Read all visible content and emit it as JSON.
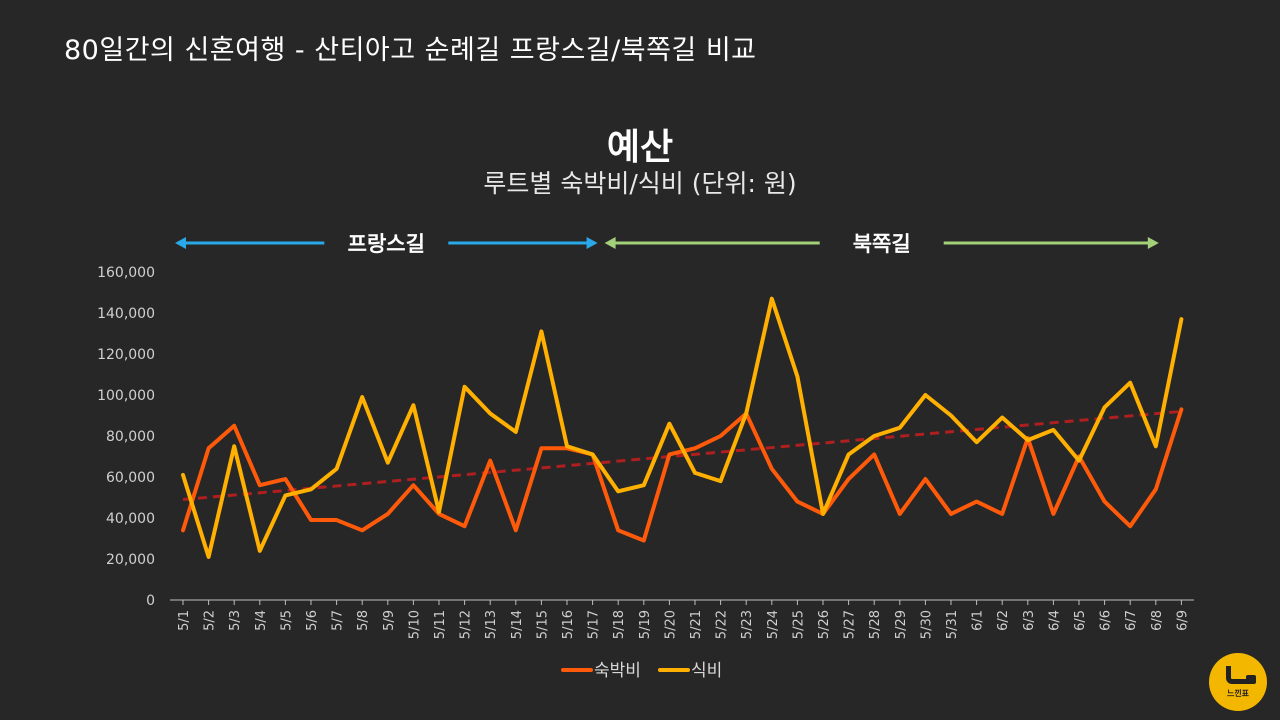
{
  "header": {
    "title": "80일간의 신혼여행 - 산티아고 순례길 프랑스길/북쪽길 비교"
  },
  "logo": {
    "text": "느낀표"
  },
  "chart_data": {
    "type": "line",
    "title": "예산",
    "subtitle": "루트별 숙박비/식비 (단위: 원)",
    "xlabel": "",
    "ylabel": "",
    "categories": [
      "5/1",
      "5/2",
      "5/3",
      "5/4",
      "5/5",
      "5/6",
      "5/7",
      "5/8",
      "5/9",
      "5/10",
      "5/11",
      "5/12",
      "5/13",
      "5/14",
      "5/15",
      "5/16",
      "5/17",
      "5/18",
      "5/19",
      "5/20",
      "5/21",
      "5/22",
      "5/23",
      "5/24",
      "5/25",
      "5/26",
      "5/27",
      "5/28",
      "5/29",
      "5/30",
      "5/31",
      "6/1",
      "6/2",
      "6/3",
      "6/4",
      "6/5",
      "6/6",
      "6/7",
      "6/8",
      "6/9"
    ],
    "ylim": [
      0,
      160000
    ],
    "yticks": [
      "0",
      "20,000",
      "40,000",
      "60,000",
      "80,000",
      "100,000",
      "120,000",
      "140,000",
      "160,000"
    ],
    "grid": false,
    "legend": "bottom",
    "series": [
      {
        "name": "숙박비",
        "color": "#ff5a0a",
        "values": [
          34000,
          74000,
          85000,
          56000,
          59000,
          39000,
          39000,
          34000,
          42000,
          56000,
          42000,
          36000,
          68000,
          34000,
          74000,
          74000,
          71000,
          34000,
          29000,
          71000,
          74000,
          80000,
          91000,
          64000,
          48000,
          42000,
          59000,
          71000,
          42000,
          59000,
          42000,
          48000,
          42000,
          79000,
          42000,
          70000,
          48000,
          36000,
          54000,
          93000
        ]
      },
      {
        "name": "식비",
        "color": "#ffb000",
        "values": [
          61000,
          21000,
          75000,
          24000,
          51000,
          54000,
          64000,
          99000,
          67000,
          95000,
          43000,
          104000,
          91000,
          82000,
          131000,
          75000,
          71000,
          53000,
          56000,
          86000,
          62000,
          58000,
          91000,
          147000,
          109000,
          42000,
          71000,
          80000,
          84000,
          100000,
          90000,
          77000,
          89000,
          78000,
          83000,
          68000,
          94000,
          106000,
          75000,
          137000
        ]
      }
    ],
    "trendline": {
      "color": "#b01f1f",
      "from": 49000,
      "to": 92000
    },
    "annotations": [
      {
        "label": "프랑스길",
        "from": "5/1",
        "to": "5/17",
        "color": "#29a9e8"
      },
      {
        "label": "북쪽길",
        "from": "5/17",
        "to": "6/8",
        "color": "#a3d17a"
      }
    ]
  }
}
